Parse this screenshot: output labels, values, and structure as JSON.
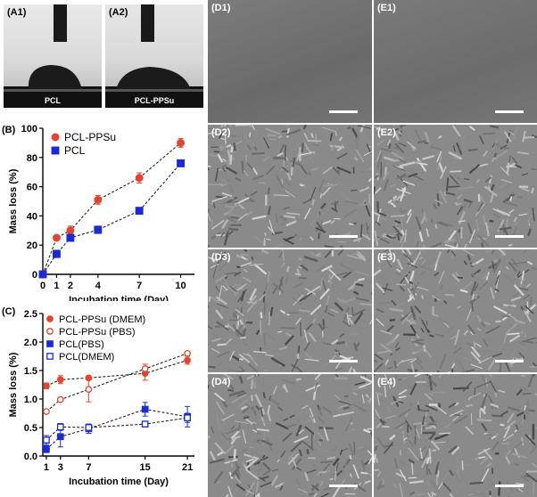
{
  "panels": {
    "A1": {
      "label": "(A1)",
      "caption": "PCL"
    },
    "A2": {
      "label": "(A2)",
      "caption": "PCL-PPSu"
    },
    "B": {
      "label": "(B)"
    },
    "C": {
      "label": "(C)"
    },
    "D1": {
      "label": "(D1)"
    },
    "D2": {
      "label": "(D2)"
    },
    "D3": {
      "label": "(D3)"
    },
    "D4": {
      "label": "(D4)"
    },
    "E1": {
      "label": "(E1)"
    },
    "E2": {
      "label": "(E2)"
    },
    "E3": {
      "label": "(E3)"
    },
    "E4": {
      "label": "(E4)"
    }
  },
  "chart_data": [
    {
      "type": "line",
      "panel": "B",
      "xlabel": "Incubation time (Day)",
      "ylabel": "Mass loss (%)",
      "x": [
        0,
        1,
        2,
        4,
        7,
        10
      ],
      "xticks": [
        "0",
        "1",
        "2",
        "4",
        "7",
        "10"
      ],
      "xlim": [
        0,
        11
      ],
      "yticks": [
        "0",
        "20",
        "40",
        "60",
        "80",
        "100"
      ],
      "ylim": [
        0,
        100
      ],
      "legend_position": "top-left",
      "series": [
        {
          "name": "PCL-PPSu",
          "color": "#e8432d",
          "marker": "circle",
          "filled": true,
          "values": [
            0,
            25,
            30,
            51,
            66,
            90
          ],
          "errors": [
            0,
            1.5,
            3,
            3,
            3.5,
            3
          ]
        },
        {
          "name": "PCL",
          "color": "#1a2bd6",
          "marker": "square",
          "filled": true,
          "values": [
            0,
            14,
            25,
            30.5,
            43.5,
            76
          ],
          "errors": [
            0,
            2.5,
            2,
            2.5,
            1,
            1
          ]
        }
      ]
    },
    {
      "type": "line",
      "panel": "C",
      "xlabel": "Incubation time (Day)",
      "ylabel": "Mass loss (%)",
      "xticks": [
        "1",
        "3",
        "7",
        "15",
        "21"
      ],
      "xlim": [
        0.5,
        22
      ],
      "yticks": [
        "0.0",
        "0.5",
        "1.0",
        "1.5",
        "2.0",
        "2.5"
      ],
      "ylim": [
        0,
        2.5
      ],
      "legend_position": "top-left",
      "series": [
        {
          "name": "PCL-PPSu (DMEM)",
          "color": "#e8432d",
          "marker": "circle",
          "filled": true,
          "x": [
            1,
            3,
            7,
            15,
            21
          ],
          "values": [
            1.23,
            1.34,
            1.37,
            1.45,
            1.68
          ],
          "errors": [
            0.05,
            0.07,
            0.03,
            0.12,
            0.07
          ]
        },
        {
          "name": "PCL-PPSu (PBS)",
          "color": "#e8432d",
          "marker": "circle",
          "filled": false,
          "x": [
            1,
            3,
            7,
            15,
            21
          ],
          "values": [
            0.78,
            0.99,
            1.17,
            1.53,
            1.8
          ],
          "errors": [
            0.03,
            0.03,
            0.22,
            0.08,
            0.03
          ]
        },
        {
          "name": "PCL(PBS)",
          "color": "#1a2bd6",
          "marker": "square",
          "filled": true,
          "x": [
            1,
            3,
            7,
            15,
            21
          ],
          "values": [
            0.12,
            0.34,
            0.48,
            0.82,
            0.69
          ],
          "errors": [
            0.06,
            0.18,
            0.08,
            0.12,
            0.18
          ]
        },
        {
          "name": "PCL(DMEM)",
          "color": "#1a2bd6",
          "marker": "square",
          "filled": false,
          "x": [
            1,
            3,
            7,
            15,
            21
          ],
          "values": [
            0.28,
            0.51,
            0.5,
            0.56,
            0.67
          ],
          "errors": [
            0.08,
            0.06,
            0.06,
            0.05,
            0.08
          ]
        }
      ]
    }
  ]
}
